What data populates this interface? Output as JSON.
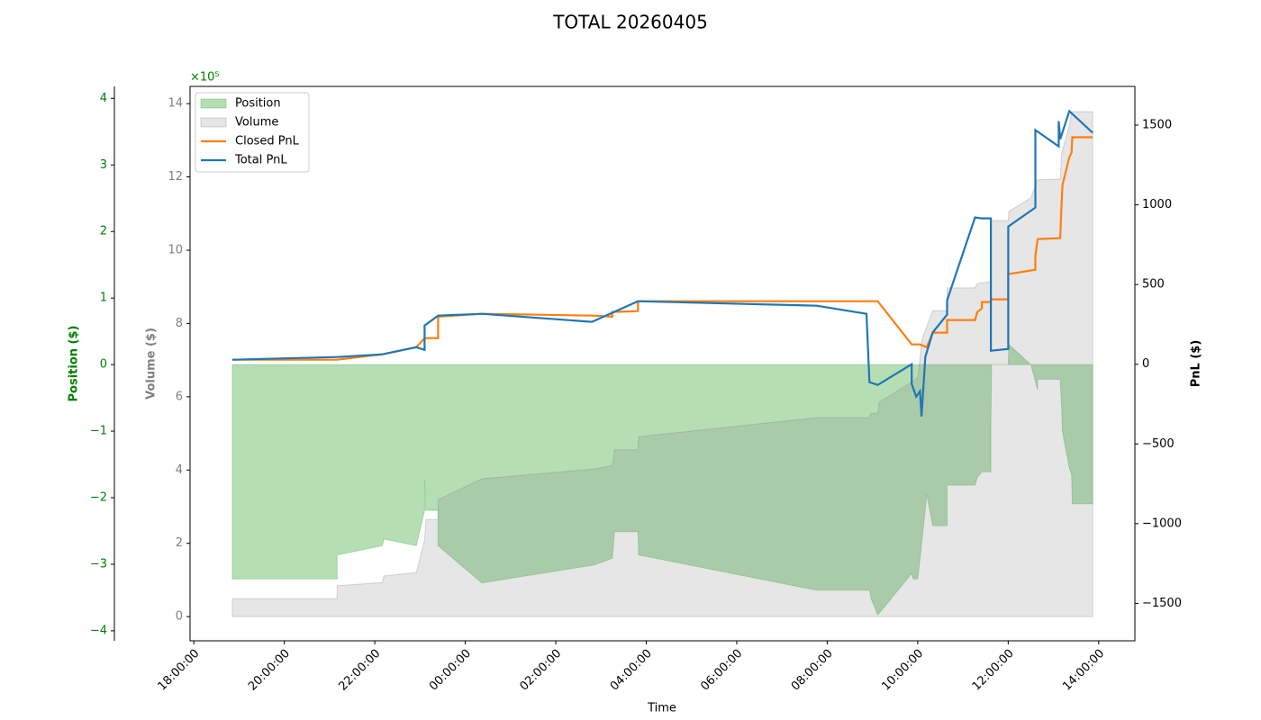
{
  "chart_data": {
    "type": "multi-axis",
    "title": "TOTAL 20260405",
    "xlabel": "Time",
    "ylabel": "Position ($)",
    "y2label": "Volume ($)",
    "y3label": "PnL ($)",
    "offset_label": "×10⁵",
    "legend": "upper left",
    "xlim": [
      "17:55:00",
      "14:48:00"
    ],
    "xticks": [
      "18:00:00",
      "20:00:00",
      "22:00:00",
      "00:00:00",
      "02:00:00",
      "04:00:00",
      "06:00:00",
      "08:00:00",
      "10:00:00",
      "12:00:00",
      "14:00:00"
    ],
    "ylim": [
      -4.15,
      4.18
    ],
    "yticks": [
      {
        "value": -4,
        "label": "−4"
      },
      {
        "value": -3,
        "label": "−3"
      },
      {
        "value": -2,
        "label": "−2"
      },
      {
        "value": -1,
        "label": "−1"
      },
      0,
      1,
      2,
      3,
      4
    ],
    "y2lim": [
      -0.66,
      14.47
    ],
    "y2ticks": [
      0,
      2,
      4,
      6,
      8,
      10,
      12,
      14
    ],
    "y3lim": [
      -1735,
      1743
    ],
    "y3ticks": [
      {
        "value": -1500,
        "label": "−1500"
      },
      {
        "value": -1000,
        "label": "−1000"
      },
      {
        "value": -500,
        "label": "−500"
      },
      0,
      500,
      1000,
      1500
    ],
    "series": [
      {
        "name": "Position",
        "kind": "area",
        "axis": "y",
        "color": "#2ca02c",
        "x": [
          "18:51:00",
          "18:51:00",
          "21:10:00",
          "21:10:00",
          "22:10:00",
          "22:12:00",
          "22:55:00",
          "23:06:00",
          "23:06:00",
          "23:07:00",
          "23:24:00",
          "23:24:00",
          "00:22:00",
          "02:51:00",
          "03:15:00",
          "03:18:00",
          "03:49:00",
          "03:50:00",
          "07:46:00",
          "08:56:00",
          "08:58:00",
          "09:07:00",
          "09:52:00",
          "09:54:00",
          "10:00:00",
          "10:06:00",
          "10:12:00",
          "10:20:00",
          "10:39:00",
          "10:39:00",
          "11:16:00",
          "11:19:00",
          "11:25:00",
          "11:37:00",
          "11:37:00",
          "11:38:00",
          "12:00:00",
          "12:01:00",
          "12:30:00",
          "12:39:00",
          "12:39:00",
          "13:09:00",
          "13:11:00",
          "13:12:00",
          "13:21:00",
          "13:24:00",
          "13:25:00",
          "13:52:00",
          "13:52:00"
        ],
        "values": [
          0,
          -3.22,
          -3.22,
          -2.86,
          -2.72,
          -2.62,
          -2.72,
          -2.19,
          -1.73,
          -2.19,
          -2.19,
          -2.72,
          -3.28,
          -3.01,
          -2.91,
          -2.51,
          -2.51,
          -2.86,
          -3.39,
          -3.39,
          -3.51,
          -3.76,
          -3.14,
          -3.22,
          -3.22,
          -2.61,
          -1.95,
          -2.42,
          -2.42,
          -1.81,
          -1.81,
          -1.7,
          -1.61,
          -1.61,
          -0.88,
          0,
          0,
          0.3,
          0,
          -0.38,
          -0.22,
          -0.22,
          -0.68,
          -1.01,
          -1.55,
          -1.65,
          -2.09,
          -2.09,
          0
        ]
      },
      {
        "name": "Volume",
        "kind": "area",
        "axis": "y2",
        "color": "#808080",
        "x": [
          "18:51:00",
          "21:10:00",
          "21:10:00",
          "22:10:00",
          "22:12:00",
          "22:55:00",
          "23:06:00",
          "23:08:00",
          "23:24:00",
          "23:24:00",
          "00:22:00",
          "02:51:00",
          "03:15:00",
          "03:18:00",
          "03:49:00",
          "03:50:00",
          "07:46:00",
          "08:56:00",
          "08:58:00",
          "09:07:00",
          "09:09:00",
          "10:00:00",
          "10:06:00",
          "10:20:00",
          "10:39:00",
          "10:39:00",
          "11:16:00",
          "11:19:00",
          "11:37:00",
          "11:37:00",
          "12:00:00",
          "12:01:00",
          "12:30:00",
          "12:39:00",
          "13:09:00",
          "13:11:00",
          "13:21:00",
          "13:24:00",
          "13:52:00"
        ],
        "values": [
          0.49,
          0.49,
          0.84,
          0.93,
          1.11,
          1.2,
          2.09,
          2.65,
          2.65,
          3.19,
          3.76,
          4.03,
          4.13,
          4.55,
          4.55,
          4.91,
          5.43,
          5.43,
          5.55,
          5.55,
          5.85,
          6.51,
          7.59,
          8.35,
          8.35,
          8.97,
          8.97,
          9.09,
          9.14,
          10.81,
          10.81,
          11.06,
          11.43,
          11.92,
          11.94,
          12.65,
          13.39,
          13.78,
          13.78
        ]
      },
      {
        "name": "Closed PnL",
        "kind": "line",
        "axis": "y3",
        "color": "#ff7f0e",
        "x": [
          "18:51:00",
          "21:10:00",
          "22:10:00",
          "22:55:00",
          "23:06:00",
          "23:24:00",
          "23:24:00",
          "00:22:00",
          "02:51:00",
          "03:15:00",
          "03:15:00",
          "03:49:00",
          "03:49:00",
          "09:07:00",
          "09:52:00",
          "10:03:00",
          "10:12:00",
          "10:20:00",
          "10:39:00",
          "10:39:00",
          "11:16:00",
          "11:19:00",
          "11:25:00",
          "11:25:00",
          "11:37:00",
          "11:37:00",
          "12:00:00",
          "12:00:00",
          "12:36:00",
          "12:36:00",
          "12:39:00",
          "13:09:00",
          "13:11:00",
          "13:12:00",
          "13:21:00",
          "13:24:00",
          "13:25:00",
          "13:52:00"
        ],
        "values": [
          28,
          28,
          62,
          107,
          164,
          164,
          299,
          316,
          305,
          299,
          328,
          333,
          395,
          395,
          124,
          124,
          107,
          198,
          198,
          277,
          277,
          328,
          350,
          390,
          390,
          407,
          407,
          565,
          593,
          678,
          785,
          791,
          1034,
          1124,
          1299,
          1328,
          1424,
          1424
        ]
      },
      {
        "name": "Total PnL",
        "kind": "line",
        "axis": "y3",
        "color": "#1f77b4",
        "x": [
          "18:51:00",
          "21:10:00",
          "22:10:00",
          "22:55:00",
          "23:06:00",
          "23:06:00",
          "23:24:00",
          "00:22:00",
          "02:48:00",
          "03:49:00",
          "07:46:00",
          "08:52:00",
          "08:56:00",
          "09:07:00",
          "09:52:00",
          "09:52:00",
          "09:58:00",
          "10:03:00",
          "10:05:00",
          "10:10:00",
          "10:20:00",
          "10:39:00",
          "10:39:00",
          "11:16:00",
          "11:25:00",
          "11:37:00",
          "11:37:00",
          "12:00:00",
          "12:00:00",
          "12:36:00",
          "12:36:00",
          "13:07:00",
          "13:07:00",
          "13:09:00",
          "13:21:00",
          "13:52:00"
        ],
        "values": [
          28,
          45,
          62,
          107,
          90,
          243,
          305,
          316,
          266,
          395,
          367,
          316,
          -113,
          -130,
          0,
          -124,
          -203,
          -169,
          -328,
          45,
          200,
          311,
          401,
          921,
          915,
          915,
          85,
          96,
          864,
          983,
          1469,
          1367,
          1525,
          1412,
          1588,
          1452
        ]
      }
    ]
  }
}
